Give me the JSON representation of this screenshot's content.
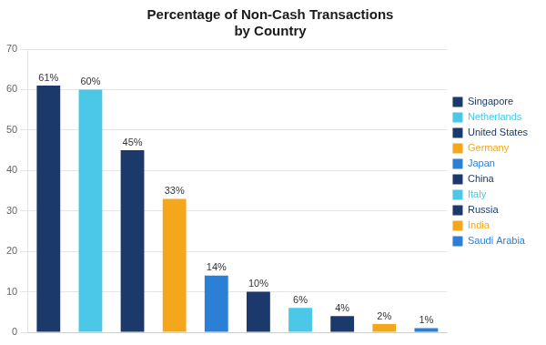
{
  "chart_data": {
    "type": "bar",
    "title": "Percentage of Non-Cash Transactions\nby Country",
    "categories": [
      "Singapore",
      "Netherlands",
      "United States",
      "Germany",
      "Japan",
      "China",
      "Italy",
      "Russia",
      "India",
      "Saudi Arabia"
    ],
    "values": [
      61,
      60,
      45,
      33,
      14,
      10,
      6,
      4,
      2,
      1
    ],
    "value_labels": [
      "61%",
      "60%",
      "45%",
      "33%",
      "14%",
      "10%",
      "6%",
      "4%",
      "2%",
      "1%"
    ],
    "data_labels": true,
    "colors": [
      "#1b3a6b",
      "#4bc8e8",
      "#1b3a6b",
      "#f5a71c",
      "#2b7fd4",
      "#1b3a6b",
      "#4bc8e8",
      "#1b3a6b",
      "#f5a71c",
      "#2b7fd4"
    ],
    "ylim": [
      0,
      70
    ],
    "yticks": [
      0,
      10,
      20,
      30,
      40,
      50,
      60,
      70
    ],
    "grid": true,
    "legend": "right",
    "tick_labels": "y"
  }
}
